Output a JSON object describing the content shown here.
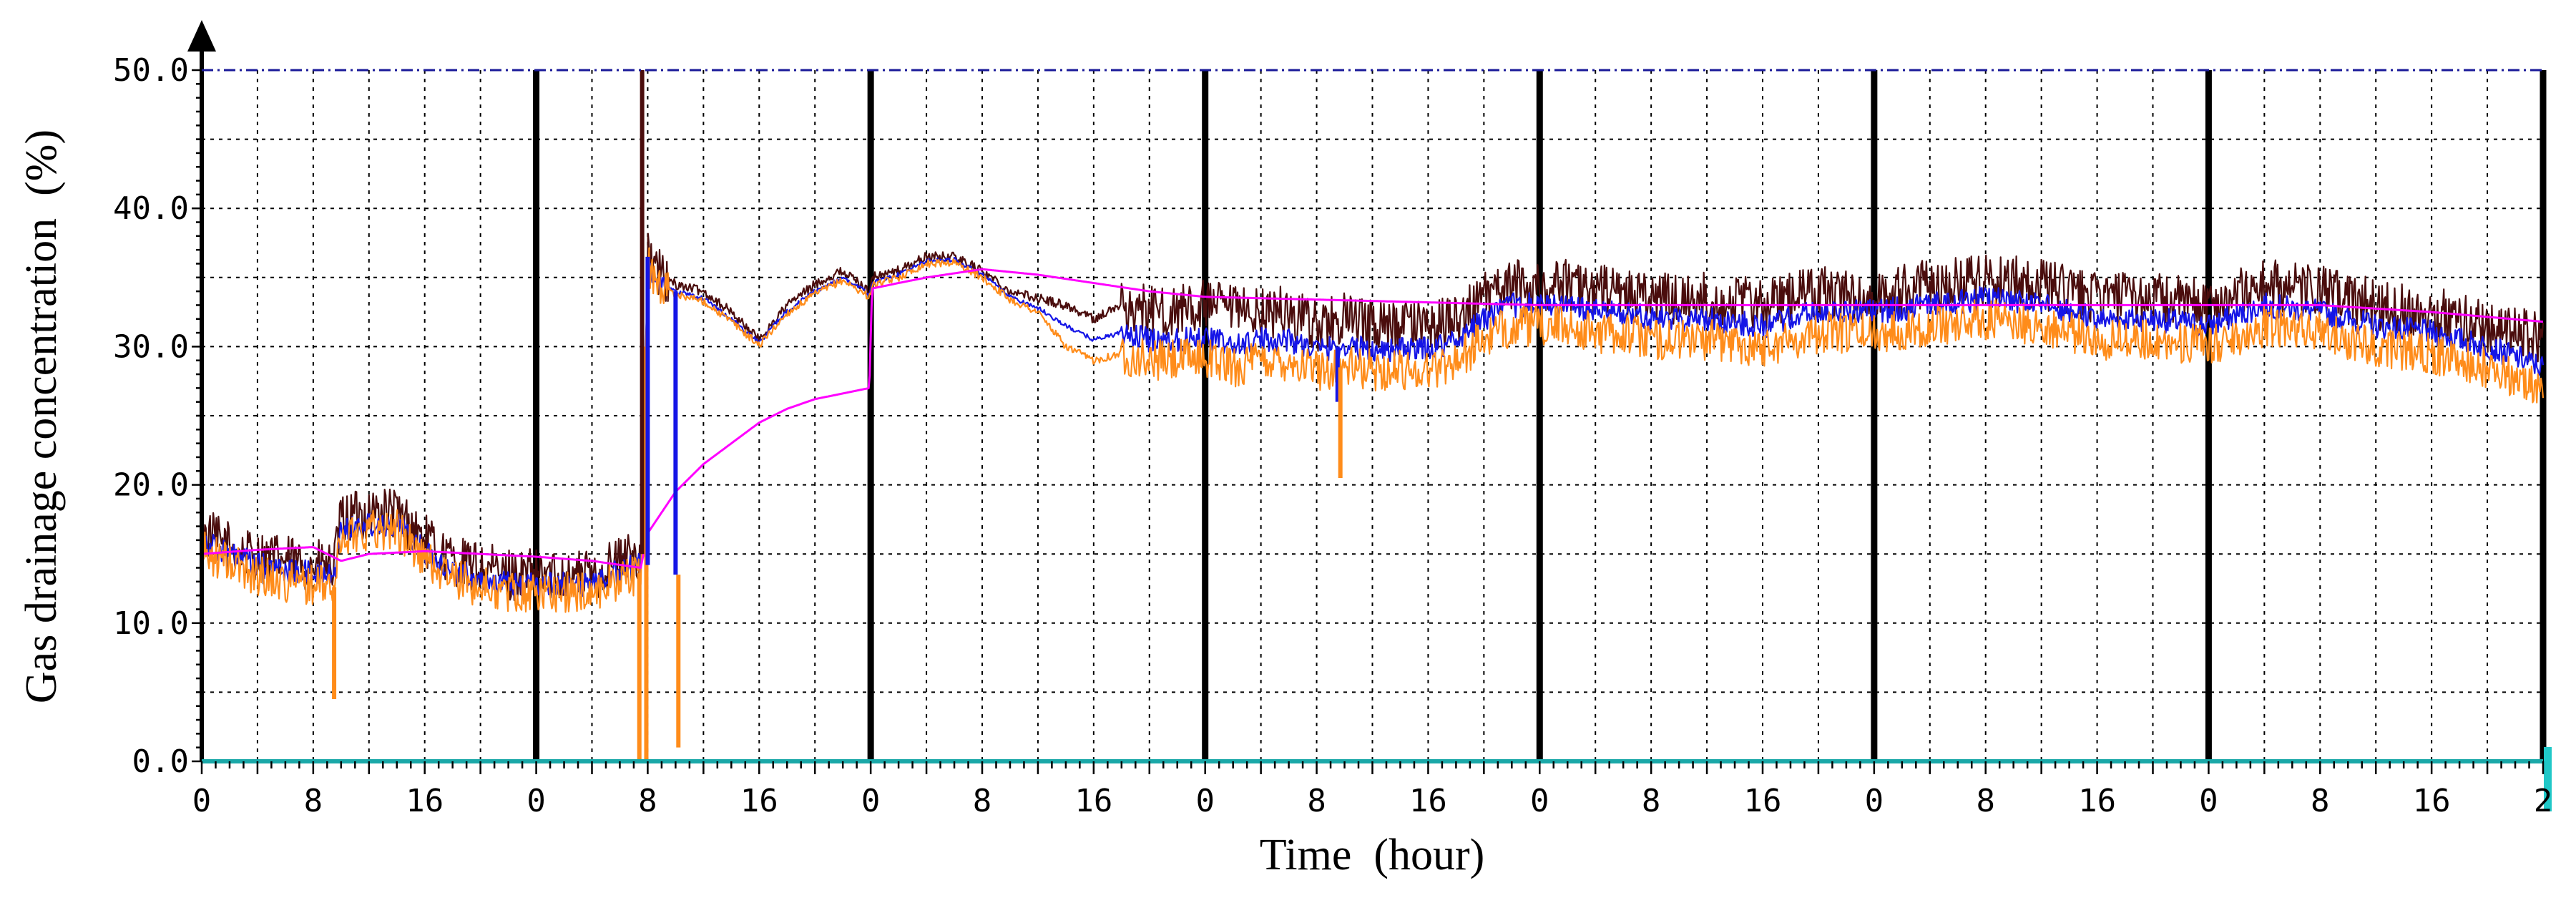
{
  "chart_data": {
    "type": "line",
    "title": "",
    "xlabel": "Time  (hour)",
    "ylabel": "Gas drainage concentration  (%)",
    "ylim": [
      0,
      50
    ],
    "xlim_hours": [
      0,
      168
    ],
    "ytick_values": [
      0,
      10,
      20,
      30,
      40,
      50
    ],
    "ytick_labels": [
      "0.0",
      "10.0",
      "20.0",
      "30.0",
      "40.0",
      "50.0"
    ],
    "xtick_labels": [
      "0",
      "8",
      "16",
      "0",
      "8",
      "16",
      "0",
      "8",
      "16",
      "0",
      "8",
      "16",
      "0",
      "8",
      "16",
      "0",
      "8",
      "16",
      "0",
      "8",
      "16",
      "2"
    ],
    "day_boundaries_hours": [
      24,
      48,
      72,
      96,
      120,
      144,
      168
    ],
    "grid": true,
    "legend": "none",
    "series": [
      {
        "name": "dark-red",
        "color": "#4a0d0d",
        "noise_amp": 1.9,
        "hours": [
          0,
          2,
          4,
          6,
          8,
          9.5,
          10,
          12,
          14,
          16,
          18,
          20,
          22,
          24,
          26,
          28,
          30,
          31.5,
          32,
          33,
          34,
          36,
          38,
          40,
          42,
          44,
          46,
          47.9,
          48.1,
          50,
          52,
          54,
          56,
          58,
          60,
          62,
          64,
          66,
          68,
          70,
          72,
          74,
          76,
          78,
          80,
          82,
          84,
          86,
          88,
          90,
          92,
          94,
          96,
          98,
          100,
          102,
          104,
          108,
          112,
          116,
          120,
          124,
          128,
          132,
          136,
          140,
          144,
          148,
          152,
          156,
          160,
          164,
          168
        ],
        "values": [
          16.5,
          15.5,
          14.8,
          14.5,
          14.2,
          14.0,
          17.5,
          18.0,
          18.0,
          16.0,
          14.5,
          14.0,
          13.5,
          13.5,
          13.5,
          13.5,
          14.5,
          15.0,
          36.5,
          35.0,
          34.5,
          34.0,
          32.5,
          30.5,
          33.0,
          34.5,
          35.5,
          34.0,
          35.0,
          35.5,
          36.5,
          36.5,
          35.5,
          34.0,
          33.5,
          33.0,
          32.0,
          33.0,
          32.5,
          32.5,
          33.0,
          32.5,
          32.5,
          32.5,
          31.5,
          32.0,
          31.5,
          31.5,
          31.5,
          32.0,
          33.5,
          34.5,
          34.5,
          34.5,
          34.0,
          34.0,
          33.5,
          33.5,
          33.0,
          34.0,
          33.5,
          34.5,
          35.0,
          34.5,
          33.5,
          33.5,
          33.0,
          34.5,
          34.0,
          33.0,
          32.5,
          31.5,
          30.5
        ]
      },
      {
        "name": "blue",
        "color": "#1515e6",
        "noise_amp": 0.9,
        "hours": [
          0,
          2,
          4,
          6,
          8,
          9.5,
          10,
          12,
          14,
          16,
          18,
          20,
          22,
          24,
          26,
          28,
          30,
          31.5,
          32,
          33,
          34,
          36,
          38,
          40,
          42,
          44,
          46,
          47.9,
          48.1,
          50,
          52,
          54,
          56,
          58,
          60,
          62,
          64,
          66,
          68,
          70,
          72,
          74,
          76,
          78,
          80,
          82,
          84,
          86,
          88,
          90,
          92,
          94,
          96,
          98,
          100,
          102,
          104,
          108,
          112,
          116,
          120,
          124,
          128,
          132,
          136,
          140,
          144,
          148,
          152,
          156,
          160,
          164,
          168
        ],
        "values": [
          16.0,
          15.0,
          14.2,
          13.8,
          13.6,
          13.4,
          16.8,
          17.2,
          17.2,
          15.2,
          13.8,
          13.2,
          12.8,
          12.8,
          12.8,
          12.8,
          13.8,
          14.2,
          36.0,
          34.5,
          34.0,
          33.5,
          32.0,
          30.3,
          32.6,
          34.0,
          35.0,
          33.8,
          34.6,
          35.2,
          36.2,
          36.3,
          35.2,
          33.6,
          32.8,
          31.5,
          30.5,
          31.0,
          30.5,
          30.5,
          30.8,
          30.0,
          30.5,
          30.5,
          29.8,
          30.0,
          29.8,
          29.8,
          29.8,
          30.5,
          32.0,
          33.0,
          33.0,
          33.0,
          32.5,
          32.5,
          32.0,
          32.0,
          31.5,
          32.5,
          32.5,
          33.0,
          33.5,
          33.0,
          32.0,
          32.0,
          31.5,
          33.0,
          32.5,
          31.5,
          31.0,
          30.0,
          28.5
        ]
      },
      {
        "name": "orange",
        "color": "#ff8c1a",
        "noise_amp": 1.5,
        "hours": [
          0,
          2,
          4,
          6,
          8,
          9.5,
          10,
          12,
          14,
          16,
          18,
          20,
          22,
          24,
          26,
          28,
          30,
          31.5,
          32,
          33,
          34,
          36,
          38,
          40,
          42,
          44,
          46,
          47.9,
          48.1,
          50,
          52,
          54,
          56,
          58,
          60,
          62,
          64,
          66,
          68,
          70,
          72,
          74,
          76,
          78,
          80,
          82,
          84,
          86,
          88,
          90,
          92,
          94,
          96,
          98,
          100,
          102,
          104,
          108,
          112,
          116,
          120,
          124,
          128,
          132,
          136,
          140,
          144,
          148,
          152,
          156,
          160,
          164,
          168
        ],
        "values": [
          15.2,
          14.3,
          13.5,
          13.0,
          12.8,
          12.6,
          16.2,
          16.8,
          16.8,
          14.6,
          13.2,
          12.6,
          12.2,
          12.2,
          12.2,
          12.2,
          13.2,
          13.6,
          35.8,
          34.3,
          33.8,
          33.3,
          31.8,
          30.1,
          32.4,
          33.8,
          34.8,
          33.6,
          34.4,
          35.0,
          36.0,
          36.1,
          35.0,
          33.4,
          32.5,
          30.0,
          29.0,
          29.5,
          29.0,
          29.0,
          29.3,
          28.5,
          29.0,
          29.0,
          28.3,
          28.5,
          28.3,
          28.3,
          28.3,
          29.0,
          30.5,
          31.5,
          31.5,
          31.5,
          31.0,
          31.0,
          30.5,
          30.5,
          30.0,
          31.0,
          31.0,
          31.5,
          32.0,
          31.5,
          30.5,
          30.5,
          30.0,
          31.5,
          31.0,
          30.0,
          29.5,
          28.5,
          27.0
        ]
      },
      {
        "name": "magenta",
        "color": "#ff00ff",
        "noise_amp": 0,
        "hours": [
          0,
          4,
          8,
          10,
          12,
          16,
          20,
          24,
          28,
          31.5,
          32,
          33,
          34,
          36,
          38,
          40,
          42,
          44,
          47.9,
          48.1,
          50,
          52,
          54,
          56,
          60,
          64,
          68,
          72,
          80,
          88,
          96,
          104,
          112,
          120,
          128,
          136,
          144,
          152,
          160,
          168
        ],
        "values": [
          15.0,
          15.3,
          15.5,
          14.5,
          15.0,
          15.2,
          15.0,
          14.8,
          14.5,
          14.0,
          16.5,
          18.0,
          19.5,
          21.5,
          23.0,
          24.5,
          25.5,
          26.2,
          27.0,
          34.2,
          34.6,
          35.0,
          35.3,
          35.6,
          35.2,
          34.6,
          34.0,
          33.6,
          33.4,
          33.2,
          33.0,
          33.0,
          33.0,
          33.0,
          33.0,
          33.0,
          33.0,
          33.0,
          32.5,
          31.8
        ]
      }
    ],
    "spikes": [
      {
        "series": "orange",
        "hours": 9.5,
        "from": 12.6,
        "to": 4.5
      },
      {
        "series": "dark-red",
        "hours": 31.6,
        "from": 15.0,
        "to": 50.0
      },
      {
        "series": "orange",
        "hours": 31.4,
        "from": 13.6,
        "to": 0.0
      },
      {
        "series": "orange",
        "hours": 31.9,
        "from": 30.0,
        "to": 0.0
      },
      {
        "series": "blue",
        "hours": 32.0,
        "from": 14.2,
        "to": 36.5
      },
      {
        "series": "blue",
        "hours": 34.0,
        "from": 34.0,
        "to": 13.5
      },
      {
        "series": "orange",
        "hours": 34.2,
        "from": 13.5,
        "to": 1.0
      },
      {
        "series": "blue",
        "hours": 81.5,
        "from": 30.0,
        "to": 26.0
      },
      {
        "series": "orange",
        "hours": 81.7,
        "from": 28.5,
        "to": 20.5
      }
    ]
  }
}
